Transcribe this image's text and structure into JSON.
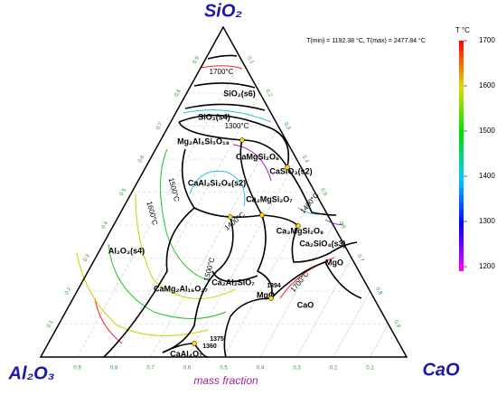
{
  "chart_data": {
    "type": "ternary",
    "corners": [
      "SiO₂",
      "Al₂O₃",
      "CaO"
    ],
    "axis_label": "mass fraction",
    "subtitle": "T(min) = 1192.38 °C, T(max) = 2477.84 °C",
    "ticks": [
      0.1,
      0.2,
      0.3,
      0.4,
      0.5,
      0.6,
      0.7,
      0.8,
      0.9
    ],
    "colorbar": {
      "title": "T °C",
      "lim": [
        1200,
        1700
      ],
      "ticks": [
        1200,
        1300,
        1400,
        1500,
        1600,
        1700
      ]
    },
    "phases": [
      "SiO₂(s6)",
      "SiO₂(s4)",
      "Mg₂Al₄Si₅O₁₈",
      "CaMgSi₂O₆",
      "CaSiO₃(s2)",
      "CaAl₂Si₂O₈(s2)",
      "Ca₂MgSi₂O₇",
      "Ca₃MgSi₂O₈",
      "Ca₂SiO₄(s3)",
      "Al₂O₃(s4)",
      "MgO",
      "CaMg₂Al₁₆O₂₇",
      "Ca₂Al₂SiO₇",
      "MgO",
      "CaO",
      "CaAl₄O₇"
    ],
    "isotherm_labels": [
      "1700°C",
      "1300°C",
      "1500°C",
      "1600°C",
      "1400°C",
      "1400°C",
      "1500°C",
      "1700°C"
    ],
    "point_labels": [
      "1394",
      "1375",
      "1360"
    ]
  }
}
